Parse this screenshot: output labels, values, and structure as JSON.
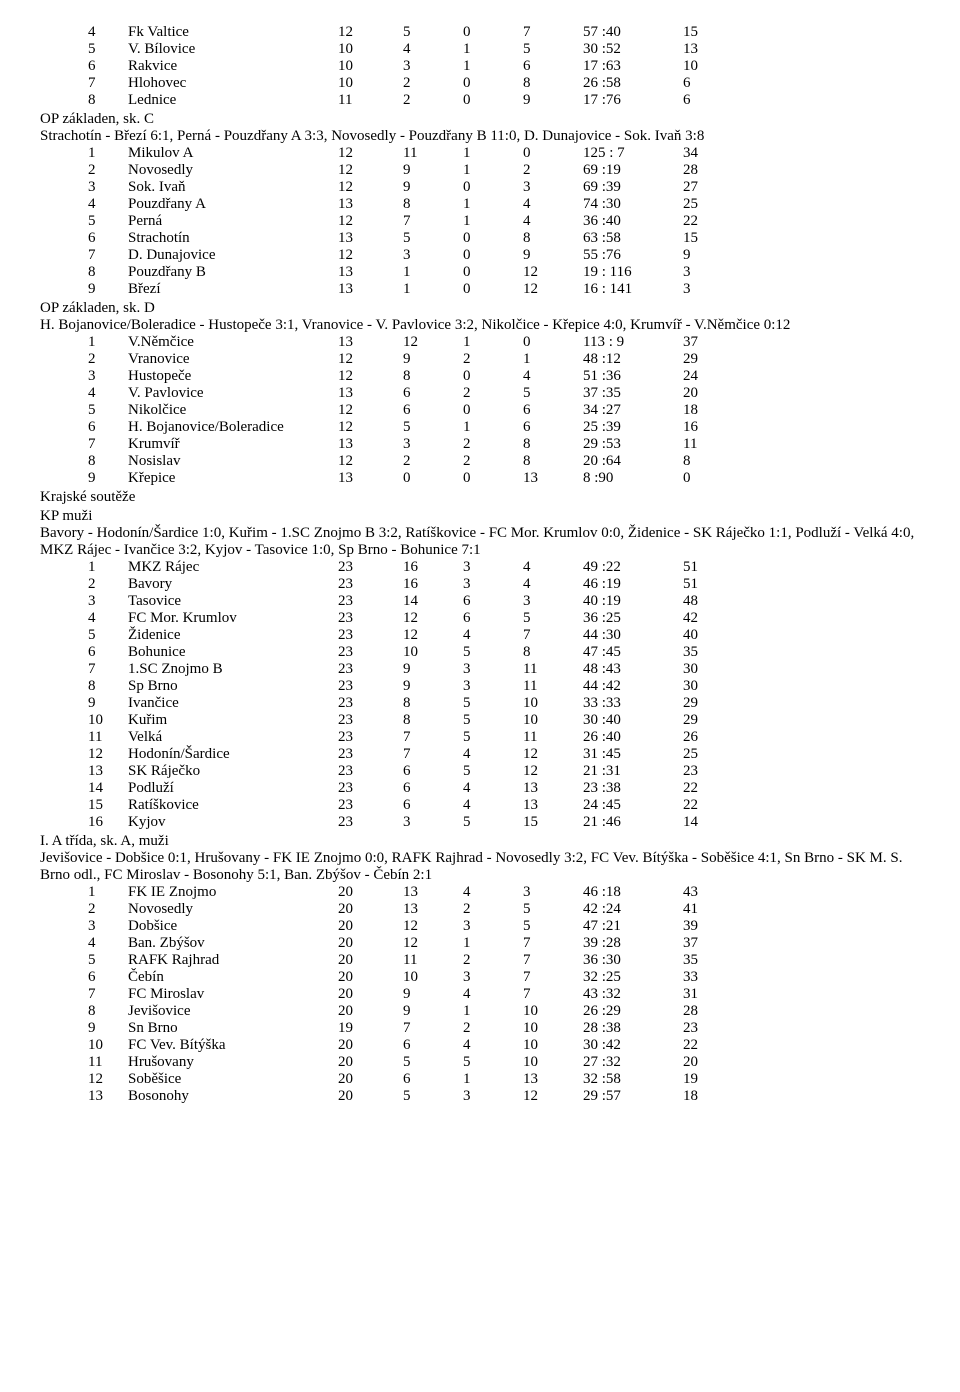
{
  "tableA": {
    "rows": [
      {
        "rank": "4",
        "team": "Fk Valtice",
        "p": "12",
        "w": "5",
        "d": "0",
        "l": "7",
        "score": "57 :40",
        "pts": "15"
      },
      {
        "rank": "5",
        "team": "V. Bílovice",
        "p": "10",
        "w": "4",
        "d": "1",
        "l": "5",
        "score": "30 :52",
        "pts": "13"
      },
      {
        "rank": "6",
        "team": "Rakvice",
        "p": "10",
        "w": "3",
        "d": "1",
        "l": "6",
        "score": "17 :63",
        "pts": "10"
      },
      {
        "rank": "7",
        "team": "Hlohovec",
        "p": "10",
        "w": "2",
        "d": "0",
        "l": "8",
        "score": "26 :58",
        "pts": "6"
      },
      {
        "rank": "8",
        "team": "Lednice",
        "p": "11",
        "w": "2",
        "d": "0",
        "l": "9",
        "score": "17 :76",
        "pts": "6"
      }
    ]
  },
  "sectionC": {
    "title": "OP základen, sk. C",
    "results": "Strachotín - Březí 6:1, Perná - Pouzdřany A 3:3, Novosedly - Pouzdřany B 11:0, D. Dunajovice - Sok. Ivaň 3:8",
    "rows": [
      {
        "rank": "1",
        "team": "Mikulov A",
        "p": "12",
        "w": "11",
        "d": "1",
        "l": "0",
        "score": "125 : 7",
        "pts": "34"
      },
      {
        "rank": "2",
        "team": "Novosedly",
        "p": "12",
        "w": "9",
        "d": "1",
        "l": "2",
        "score": "69 :19",
        "pts": "28"
      },
      {
        "rank": "3",
        "team": "Sok. Ivaň",
        "p": "12",
        "w": "9",
        "d": "0",
        "l": "3",
        "score": "69 :39",
        "pts": "27"
      },
      {
        "rank": "4",
        "team": "Pouzdřany A",
        "p": "13",
        "w": "8",
        "d": "1",
        "l": "4",
        "score": "74 :30",
        "pts": "25"
      },
      {
        "rank": "5",
        "team": "Perná",
        "p": "12",
        "w": "7",
        "d": "1",
        "l": "4",
        "score": "36 :40",
        "pts": "22"
      },
      {
        "rank": "6",
        "team": "Strachotín",
        "p": "13",
        "w": "5",
        "d": "0",
        "l": "8",
        "score": "63 :58",
        "pts": "15"
      },
      {
        "rank": "7",
        "team": "D. Dunajovice",
        "p": "12",
        "w": "3",
        "d": "0",
        "l": "9",
        "score": "55 :76",
        "pts": "9"
      },
      {
        "rank": "8",
        "team": "Pouzdřany B",
        "p": "13",
        "w": "1",
        "d": "0",
        "l": "12",
        "score": "19 : 116",
        "pts": "3"
      },
      {
        "rank": "9",
        "team": "Březí",
        "p": "13",
        "w": "1",
        "d": "0",
        "l": "12",
        "score": "16 : 141",
        "pts": "3"
      }
    ]
  },
  "sectionD": {
    "title": "OP základen, sk. D",
    "results": "H. Bojanovice/Boleradice - Hustopeče 3:1, Vranovice - V. Pavlovice 3:2, Nikolčice - Křepice 4:0, Krumvíř - V.Němčice 0:12",
    "rows": [
      {
        "rank": "1",
        "team": "V.Němčice",
        "p": "13",
        "w": "12",
        "d": "1",
        "l": "0",
        "score": "113 : 9",
        "pts": "37"
      },
      {
        "rank": "2",
        "team": "Vranovice",
        "p": "12",
        "w": "9",
        "d": "2",
        "l": "1",
        "score": "48 :12",
        "pts": "29"
      },
      {
        "rank": "3",
        "team": "Hustopeče",
        "p": "12",
        "w": "8",
        "d": "0",
        "l": "4",
        "score": "51 :36",
        "pts": "24"
      },
      {
        "rank": "4",
        "team": "V. Pavlovice",
        "p": "13",
        "w": "6",
        "d": "2",
        "l": "5",
        "score": "37 :35",
        "pts": "20"
      },
      {
        "rank": "5",
        "team": "Nikolčice",
        "p": "12",
        "w": "6",
        "d": "0",
        "l": "6",
        "score": "34 :27",
        "pts": "18"
      },
      {
        "rank": "6",
        "team": "H. Bojanovice/Boleradice",
        "p": "12",
        "w": "5",
        "d": "1",
        "l": "6",
        "score": "25 :39",
        "pts": "16"
      },
      {
        "rank": "7",
        "team": "Krumvíř",
        "p": "13",
        "w": "3",
        "d": "2",
        "l": "8",
        "score": "29 :53",
        "pts": "11"
      },
      {
        "rank": "8",
        "team": "Nosislav",
        "p": "12",
        "w": "2",
        "d": "2",
        "l": "8",
        "score": "20 :64",
        "pts": "8"
      },
      {
        "rank": "9",
        "team": "Křepice",
        "p": "13",
        "w": "0",
        "d": "0",
        "l": "13",
        "score": "8 :90",
        "pts": "0"
      }
    ]
  },
  "sectionKP": {
    "title1": "Krajské soutěže",
    "title2": "KP muži",
    "results": "Bavory - Hodonín/Šardice 1:0, Kuřim - 1.SC Znojmo B 3:2, Ratíškovice - FC Mor. Krumlov 0:0, Židenice - SK Ráječko 1:1, Podluží - Velká 4:0, MKZ Rájec - Ivančice 3:2, Kyjov - Tasovice 1:0, Sp Brno - Bohunice 7:1",
    "rows": [
      {
        "rank": "1",
        "team": "MKZ Rájec",
        "p": "23",
        "w": "16",
        "d": "3",
        "l": "4",
        "score": "49 :22",
        "pts": "51"
      },
      {
        "rank": "2",
        "team": "Bavory",
        "p": "23",
        "w": "16",
        "d": "3",
        "l": "4",
        "score": "46 :19",
        "pts": "51"
      },
      {
        "rank": "3",
        "team": "Tasovice",
        "p": "23",
        "w": "14",
        "d": "6",
        "l": "3",
        "score": "40 :19",
        "pts": "48"
      },
      {
        "rank": "4",
        "team": "FC Mor. Krumlov",
        "p": "23",
        "w": "12",
        "d": "6",
        "l": "5",
        "score": "36 :25",
        "pts": "42"
      },
      {
        "rank": "5",
        "team": "Židenice",
        "p": "23",
        "w": "12",
        "d": "4",
        "l": "7",
        "score": "44 :30",
        "pts": "40"
      },
      {
        "rank": "6",
        "team": "Bohunice",
        "p": "23",
        "w": "10",
        "d": "5",
        "l": "8",
        "score": "47 :45",
        "pts": "35"
      },
      {
        "rank": "7",
        "team": "1.SC Znojmo B",
        "p": "23",
        "w": "9",
        "d": "3",
        "l": "11",
        "score": "48 :43",
        "pts": "30"
      },
      {
        "rank": "8",
        "team": "Sp Brno",
        "p": "23",
        "w": "9",
        "d": "3",
        "l": "11",
        "score": "44 :42",
        "pts": "30"
      },
      {
        "rank": "9",
        "team": "Ivančice",
        "p": "23",
        "w": "8",
        "d": "5",
        "l": "10",
        "score": "33 :33",
        "pts": "29"
      },
      {
        "rank": "10",
        "team": "Kuřim",
        "p": "23",
        "w": "8",
        "d": "5",
        "l": "10",
        "score": "30 :40",
        "pts": "29"
      },
      {
        "rank": "11",
        "team": "Velká",
        "p": "23",
        "w": "7",
        "d": "5",
        "l": "11",
        "score": "26 :40",
        "pts": "26"
      },
      {
        "rank": "12",
        "team": "Hodonín/Šardice",
        "p": "23",
        "w": "7",
        "d": "4",
        "l": "12",
        "score": "31 :45",
        "pts": "25"
      },
      {
        "rank": "13",
        "team": "SK Ráječko",
        "p": "23",
        "w": "6",
        "d": "5",
        "l": "12",
        "score": "21 :31",
        "pts": "23"
      },
      {
        "rank": "14",
        "team": "Podluží",
        "p": "23",
        "w": "6",
        "d": "4",
        "l": "13",
        "score": "23 :38",
        "pts": "22"
      },
      {
        "rank": "15",
        "team": "Ratíškovice",
        "p": "23",
        "w": "6",
        "d": "4",
        "l": "13",
        "score": "24 :45",
        "pts": "22"
      },
      {
        "rank": "16",
        "team": "Kyjov",
        "p": "23",
        "w": "3",
        "d": "5",
        "l": "15",
        "score": "21 :46",
        "pts": "14"
      }
    ]
  },
  "sectionIA": {
    "title": "I. A třída, sk. A, muži",
    "results": "Jevišovice - Dobšice 0:1, Hrušovany - FK IE Znojmo 0:0, RAFK Rajhrad - Novosedly 3:2, FC Vev. Bítýška - Soběšice 4:1, Sn Brno - SK M. S. Brno odl., FC Miroslav - Bosonohy 5:1, Ban. Zbýšov - Čebín 2:1",
    "rows": [
      {
        "rank": "1",
        "team": "FK IE Znojmo",
        "p": "20",
        "w": "13",
        "d": "4",
        "l": "3",
        "score": "46 :18",
        "pts": "43"
      },
      {
        "rank": "2",
        "team": "Novosedly",
        "p": "20",
        "w": "13",
        "d": "2",
        "l": "5",
        "score": "42 :24",
        "pts": "41"
      },
      {
        "rank": "3",
        "team": "Dobšice",
        "p": "20",
        "w": "12",
        "d": "3",
        "l": "5",
        "score": "47 :21",
        "pts": "39"
      },
      {
        "rank": "4",
        "team": "Ban. Zbýšov",
        "p": "20",
        "w": "12",
        "d": "1",
        "l": "7",
        "score": "39 :28",
        "pts": "37"
      },
      {
        "rank": "5",
        "team": "RAFK Rajhrad",
        "p": "20",
        "w": "11",
        "d": "2",
        "l": "7",
        "score": "36 :30",
        "pts": "35"
      },
      {
        "rank": "6",
        "team": "Čebín",
        "p": "20",
        "w": "10",
        "d": "3",
        "l": "7",
        "score": "32 :25",
        "pts": "33"
      },
      {
        "rank": "7",
        "team": "FC Miroslav",
        "p": "20",
        "w": "9",
        "d": "4",
        "l": "7",
        "score": "43 :32",
        "pts": "31"
      },
      {
        "rank": "8",
        "team": "Jevišovice",
        "p": "20",
        "w": "9",
        "d": "1",
        "l": "10",
        "score": "26 :29",
        "pts": "28"
      },
      {
        "rank": "9",
        "team": "Sn Brno",
        "p": "19",
        "w": "7",
        "d": "2",
        "l": "10",
        "score": "28 :38",
        "pts": "23"
      },
      {
        "rank": "10",
        "team": "FC Vev. Bítýška",
        "p": "20",
        "w": "6",
        "d": "4",
        "l": "10",
        "score": "30 :42",
        "pts": "22"
      },
      {
        "rank": "11",
        "team": "Hrušovany",
        "p": "20",
        "w": "5",
        "d": "5",
        "l": "10",
        "score": "27 :32",
        "pts": "20"
      },
      {
        "rank": "12",
        "team": "Soběšice",
        "p": "20",
        "w": "6",
        "d": "1",
        "l": "13",
        "score": "32 :58",
        "pts": "19"
      },
      {
        "rank": "13",
        "team": "Bosonohy",
        "p": "20",
        "w": "5",
        "d": "3",
        "l": "12",
        "score": "29 :57",
        "pts": "18"
      }
    ]
  }
}
